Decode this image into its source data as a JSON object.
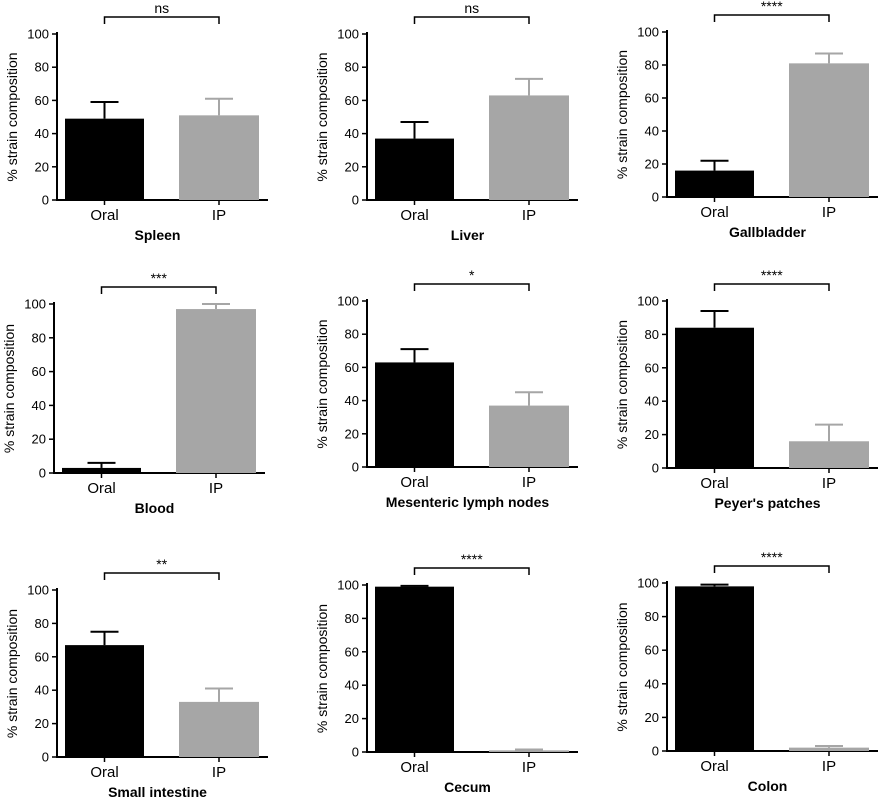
{
  "colors": {
    "oral": "#000000",
    "ip": "#a6a6a6",
    "axis": "#000000"
  },
  "chart_data": [
    {
      "type": "bar",
      "title": "Spleen",
      "ylabel": "% strain composition",
      "categories": [
        "Oral",
        "IP"
      ],
      "values": [
        49,
        51
      ],
      "error": [
        10,
        10
      ],
      "ylim": [
        0,
        100
      ],
      "yticks": [
        "0",
        "20",
        "40",
        "60",
        "80",
        "100"
      ],
      "significance": "ns"
    },
    {
      "type": "bar",
      "title": "Liver",
      "ylabel": "% strain composition",
      "categories": [
        "Oral",
        "IP"
      ],
      "values": [
        37,
        63
      ],
      "error": [
        10,
        10
      ],
      "ylim": [
        0,
        100
      ],
      "yticks": [
        "0",
        "20",
        "40",
        "60",
        "80",
        "100"
      ],
      "significance": "ns"
    },
    {
      "type": "bar",
      "title": "Gallbladder",
      "ylabel": "% strain composition",
      "categories": [
        "Oral",
        "IP"
      ],
      "values": [
        16,
        81
      ],
      "error": [
        6,
        6
      ],
      "ylim": [
        0,
        100
      ],
      "yticks": [
        "0",
        "20",
        "40",
        "60",
        "80",
        "100"
      ],
      "significance": "****"
    },
    {
      "type": "bar",
      "title": "Blood",
      "ylabel": "% strain composition",
      "categories": [
        "Oral",
        "IP"
      ],
      "values": [
        3,
        97
      ],
      "error": [
        3,
        3
      ],
      "ylim": [
        0,
        100
      ],
      "yticks": [
        "0",
        "20",
        "40",
        "60",
        "80",
        "100"
      ],
      "significance": "***"
    },
    {
      "type": "bar",
      "title": "Mesenteric lymph nodes",
      "ylabel": "% strain composition",
      "categories": [
        "Oral",
        "IP"
      ],
      "values": [
        63,
        37
      ],
      "error": [
        8,
        8
      ],
      "ylim": [
        0,
        100
      ],
      "yticks": [
        "0",
        "20",
        "40",
        "60",
        "80",
        "100"
      ],
      "significance": "*"
    },
    {
      "type": "bar",
      "title": "Peyer's patches",
      "ylabel": "% strain composition",
      "categories": [
        "Oral",
        "IP"
      ],
      "values": [
        84,
        16
      ],
      "error": [
        10,
        10
      ],
      "ylim": [
        0,
        100
      ],
      "yticks": [
        "0",
        "20",
        "40",
        "60",
        "80",
        "100"
      ],
      "significance": "****"
    },
    {
      "type": "bar",
      "title": "Small intestine",
      "ylabel": "% strain composition",
      "categories": [
        "Oral",
        "IP"
      ],
      "values": [
        67,
        33
      ],
      "error": [
        8,
        8
      ],
      "ylim": [
        0,
        100
      ],
      "yticks": [
        "0",
        "20",
        "40",
        "60",
        "80",
        "100"
      ],
      "significance": "**"
    },
    {
      "type": "bar",
      "title": "Cecum",
      "ylabel": "% strain composition",
      "categories": [
        "Oral",
        "IP"
      ],
      "values": [
        99,
        1
      ],
      "error": [
        0.5,
        0.5
      ],
      "ylim": [
        0,
        100
      ],
      "yticks": [
        "0",
        "20",
        "40",
        "60",
        "80",
        "100"
      ],
      "significance": "****"
    },
    {
      "type": "bar",
      "title": "Colon",
      "ylabel": "% strain composition",
      "categories": [
        "Oral",
        "IP"
      ],
      "values": [
        98,
        2
      ],
      "error": [
        1,
        1
      ],
      "ylim": [
        0,
        100
      ],
      "yticks": [
        "0",
        "20",
        "40",
        "60",
        "80",
        "100"
      ],
      "significance": "****"
    }
  ]
}
